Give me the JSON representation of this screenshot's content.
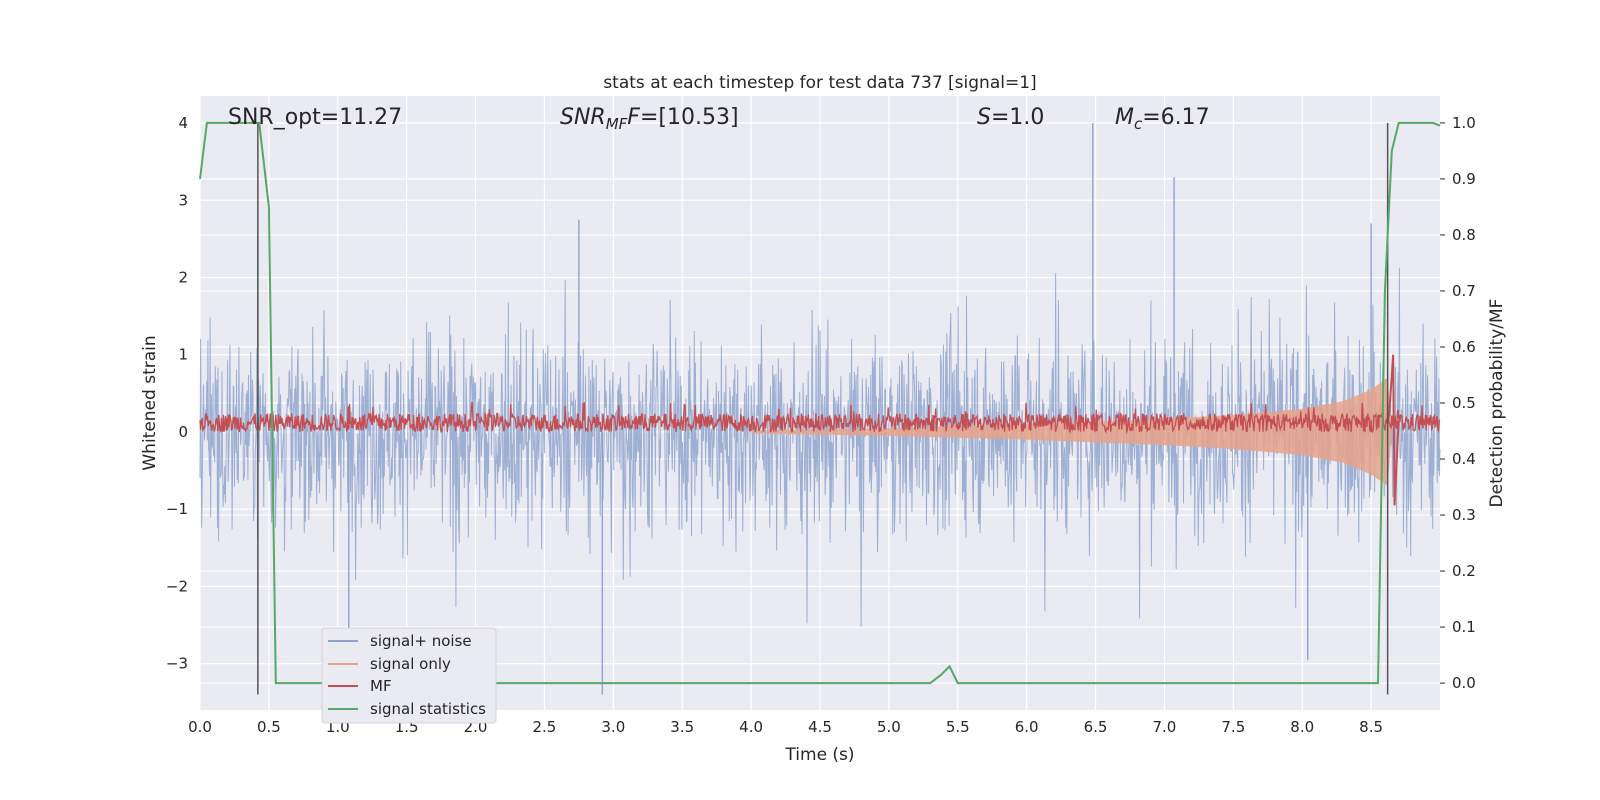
{
  "chart_data": {
    "type": "line",
    "title": "stats at each timestep for test data 737 [signal=1]",
    "xlabel": "Time (s)",
    "ylabel": "Whitened strain",
    "ylabel_right": "Detection probability/MF",
    "xlim": [
      0.0,
      9.0
    ],
    "ylim": [
      -3.6,
      4.35
    ],
    "ylim_right": [
      -0.048,
      1.048
    ],
    "xticks": [
      0.0,
      0.5,
      1.0,
      1.5,
      2.0,
      2.5,
      3.0,
      3.5,
      4.0,
      4.5,
      5.0,
      5.5,
      6.0,
      6.5,
      7.0,
      7.5,
      8.0,
      8.5
    ],
    "xtick_labels": [
      "0.0",
      "0.5",
      "1.0",
      "1.5",
      "2.0",
      "2.5",
      "3.0",
      "3.5",
      "4.0",
      "4.5",
      "5.0",
      "5.5",
      "6.0",
      "6.5",
      "7.0",
      "7.5",
      "8.0",
      "8.5"
    ],
    "yticks": [
      -3,
      -2,
      -1,
      0,
      1,
      2,
      3,
      4
    ],
    "ytick_labels": [
      "−3",
      "−2",
      "−1",
      "0",
      "1",
      "2",
      "3",
      "4"
    ],
    "yticks_right": [
      0.0,
      0.1,
      0.2,
      0.3,
      0.4,
      0.5,
      0.6,
      0.7,
      0.8,
      0.9,
      1.0
    ],
    "ytick_labels_right": [
      "0.0",
      "0.1",
      "0.2",
      "0.3",
      "0.4",
      "0.5",
      "0.6",
      "0.7",
      "0.8",
      "0.9",
      "1.0"
    ],
    "grid": true,
    "legend_position": "lower-left",
    "annotations": {
      "snr_opt": "SNR_opt=11.27",
      "snr_mf_main": "SNR",
      "snr_mf_sub": "MF",
      "snr_mf_value": "=[10.53]",
      "s_main": "S",
      "s_value": "=1.0",
      "mc_main": "M",
      "mc_sub": "c",
      "mc_value": "=6.17"
    },
    "vlines_x": [
      0.42,
      8.62
    ],
    "series": [
      {
        "name": "signal+ noise",
        "color": "#8fa4cc",
        "axis": "left",
        "style": "noise",
        "typical_amplitude": 1.0,
        "peaks": [
          {
            "x": 0.42,
            "y": 2.6
          },
          {
            "x": 0.42,
            "y": -1.4
          },
          {
            "x": 1.08,
            "y": -2.6
          },
          {
            "x": 2.92,
            "y": -3.4
          },
          {
            "x": 2.75,
            "y": 2.75
          },
          {
            "x": 6.48,
            "y": 4.0
          },
          {
            "x": 7.07,
            "y": 3.3
          },
          {
            "x": 8.04,
            "y": -2.95
          },
          {
            "x": 8.5,
            "y": 2.7
          }
        ]
      },
      {
        "name": "signal only",
        "color": "#e8a28a",
        "axis": "left",
        "style": "chirp",
        "envelope": [
          [
            4.0,
            0.02
          ],
          [
            5.0,
            0.05
          ],
          [
            6.0,
            0.1
          ],
          [
            7.0,
            0.17
          ],
          [
            7.5,
            0.22
          ],
          [
            8.0,
            0.3
          ],
          [
            8.3,
            0.4
          ],
          [
            8.5,
            0.55
          ],
          [
            8.62,
            0.7
          ],
          [
            8.65,
            0.0
          ]
        ]
      },
      {
        "name": "MF",
        "color": "#c44e52",
        "axis": "left",
        "style": "band",
        "center": 0.12,
        "amplitude": 0.12,
        "spike": {
          "x": 8.66,
          "y_max": 1.0,
          "y_min": -0.95
        }
      },
      {
        "name": "signal statistics",
        "color": "#55a868",
        "axis": "right",
        "style": "line",
        "x": [
          0.0,
          0.05,
          0.4,
          0.43,
          0.5,
          0.55,
          0.6,
          5.3,
          5.38,
          5.44,
          5.5,
          8.55,
          8.6,
          8.65,
          8.7,
          8.75,
          8.95,
          9.0
        ],
        "y": [
          0.9,
          1.0,
          1.0,
          1.0,
          0.85,
          0.0,
          0.0,
          0.0,
          0.015,
          0.03,
          0.0,
          0.0,
          0.7,
          0.95,
          1.0,
          1.0,
          1.0,
          0.995
        ]
      }
    ]
  }
}
